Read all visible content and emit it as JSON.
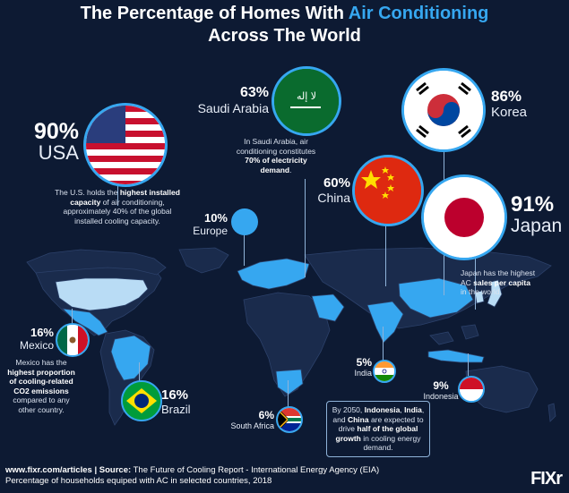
{
  "title": {
    "line1_pre": "The Percentage of Homes With ",
    "line1_highlight": "Air Conditioning",
    "line2": "Across The World"
  },
  "countries": {
    "usa": {
      "pct": "90%",
      "name": "USA",
      "note_pre": "The U.S. holds the ",
      "note_bold": "highest installed capacity",
      "note_post": " of air conditioning, approximately 40% of the global installed cooling capacity."
    },
    "saudi": {
      "pct": "63%",
      "name": "Saudi Arabia",
      "note_pre": "In Saudi Arabia, air conditioning constitutes ",
      "note_bold": "70% of electricity demand",
      "note_post": "."
    },
    "korea": {
      "pct": "86%",
      "name": "Korea"
    },
    "china": {
      "pct": "60%",
      "name": "China"
    },
    "japan": {
      "pct": "91%",
      "name": "Japan",
      "note_pre": "Japan has the highest AC ",
      "note_bold": "sales per capita",
      "note_post": " in the world."
    },
    "europe": {
      "pct": "10%",
      "name": "Europe"
    },
    "mexico": {
      "pct": "16%",
      "name": "Mexico",
      "note_pre": "Mexico has the ",
      "note_bold": "highest proportion of cooling-related CO2 emissions",
      "note_post": " compared to any other country."
    },
    "brazil": {
      "pct": "16%",
      "name": "Brazil"
    },
    "india": {
      "pct": "5%",
      "name": "India"
    },
    "indonesia": {
      "pct": "9%",
      "name": "Indonesia"
    },
    "south_africa": {
      "pct": "6%",
      "name": "South Africa"
    }
  },
  "growth_note": {
    "pre": "By 2050, ",
    "b1": "Indonesia",
    "sep1": ", ",
    "b2": "India",
    "sep2": ", and ",
    "b3": "China",
    "mid": " are expected to drive ",
    "b4": "half of the global growth",
    "post": " in cooling energy demand."
  },
  "footer": {
    "url": "www.fixr.com/articles",
    "divider": "|",
    "source_label": "Source:",
    "source_text": "The Future of Cooling Report - International Energy Agency (EIA)",
    "caption": "Percentage of households equiped with AC in selected countries, 2018"
  },
  "logo": "FIXr",
  "colors": {
    "background": "#0d1a33",
    "accent": "#36a7f0",
    "land_base": "#1a2b4c",
    "land_highlight": "#36a7f0",
    "land_light": "#b9dcf5"
  }
}
